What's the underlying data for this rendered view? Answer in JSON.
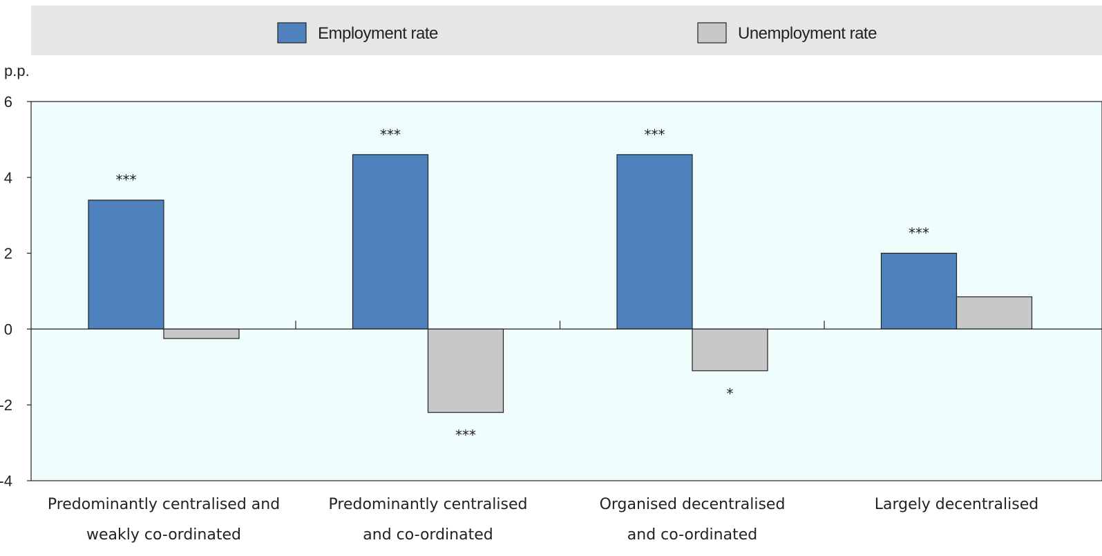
{
  "legend": {
    "employment_label": "Employment rate",
    "unemployment_label": "Unemployment rate"
  },
  "chart_data": {
    "type": "bar",
    "ylabel": "p.p.",
    "ylim": [
      -4,
      6
    ],
    "yticks": [
      -4,
      -2,
      0,
      2,
      4,
      6
    ],
    "grid": false,
    "legend_position": "top",
    "categories": [
      [
        "Predominantly centralised and",
        "weakly co-ordinated"
      ],
      [
        "Predominantly centralised",
        "and co-ordinated"
      ],
      [
        "Organised decentralised",
        "and co-ordinated"
      ],
      [
        "Largely decentralised"
      ]
    ],
    "series": [
      {
        "name": "Employment rate",
        "color": "#4f81bd",
        "values": [
          3.4,
          4.6,
          4.6,
          2.0
        ],
        "significance": [
          "***",
          "***",
          "***",
          "***"
        ]
      },
      {
        "name": "Unemployment rate",
        "color": "#c8c8c8",
        "values": [
          -0.25,
          -2.2,
          -1.1,
          0.85
        ],
        "significance": [
          "",
          "***",
          "*",
          ""
        ]
      }
    ],
    "colors": {
      "plot_background": "#f0fdfd",
      "legend_background": "#e6e6e6"
    }
  }
}
